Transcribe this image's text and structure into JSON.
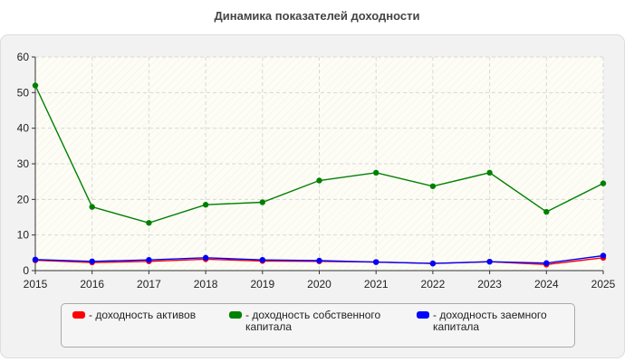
{
  "chart_data": {
    "type": "line",
    "title": "Динамика показателей доходности",
    "xlabel": "",
    "ylabel": "",
    "x": [
      "2015",
      "2016",
      "2017",
      "2018",
      "2019",
      "2020",
      "2021",
      "2022",
      "2023",
      "2024",
      "2025"
    ],
    "ylim": [
      0,
      60
    ],
    "yticks": [
      0,
      10,
      20,
      30,
      40,
      50,
      60
    ],
    "grid": true,
    "legend_position": "bottom",
    "series": [
      {
        "name": "- доходность активов",
        "color": "#ff0000",
        "values": [
          2.9,
          2.3,
          2.6,
          3.2,
          2.7,
          2.6,
          2.4,
          2.0,
          2.5,
          1.7,
          3.6
        ]
      },
      {
        "name": "- доходность собственного капитала",
        "color": "#008000",
        "values": [
          52,
          17.9,
          13.4,
          18.5,
          19.2,
          25.3,
          27.5,
          23.7,
          27.5,
          16.5,
          24.5
        ]
      },
      {
        "name": "- доходность заемного капитала",
        "color": "#0000ff",
        "values": [
          3.1,
          2.6,
          3.0,
          3.6,
          3.0,
          2.8,
          2.4,
          2.0,
          2.5,
          2.1,
          4.2
        ]
      }
    ]
  }
}
